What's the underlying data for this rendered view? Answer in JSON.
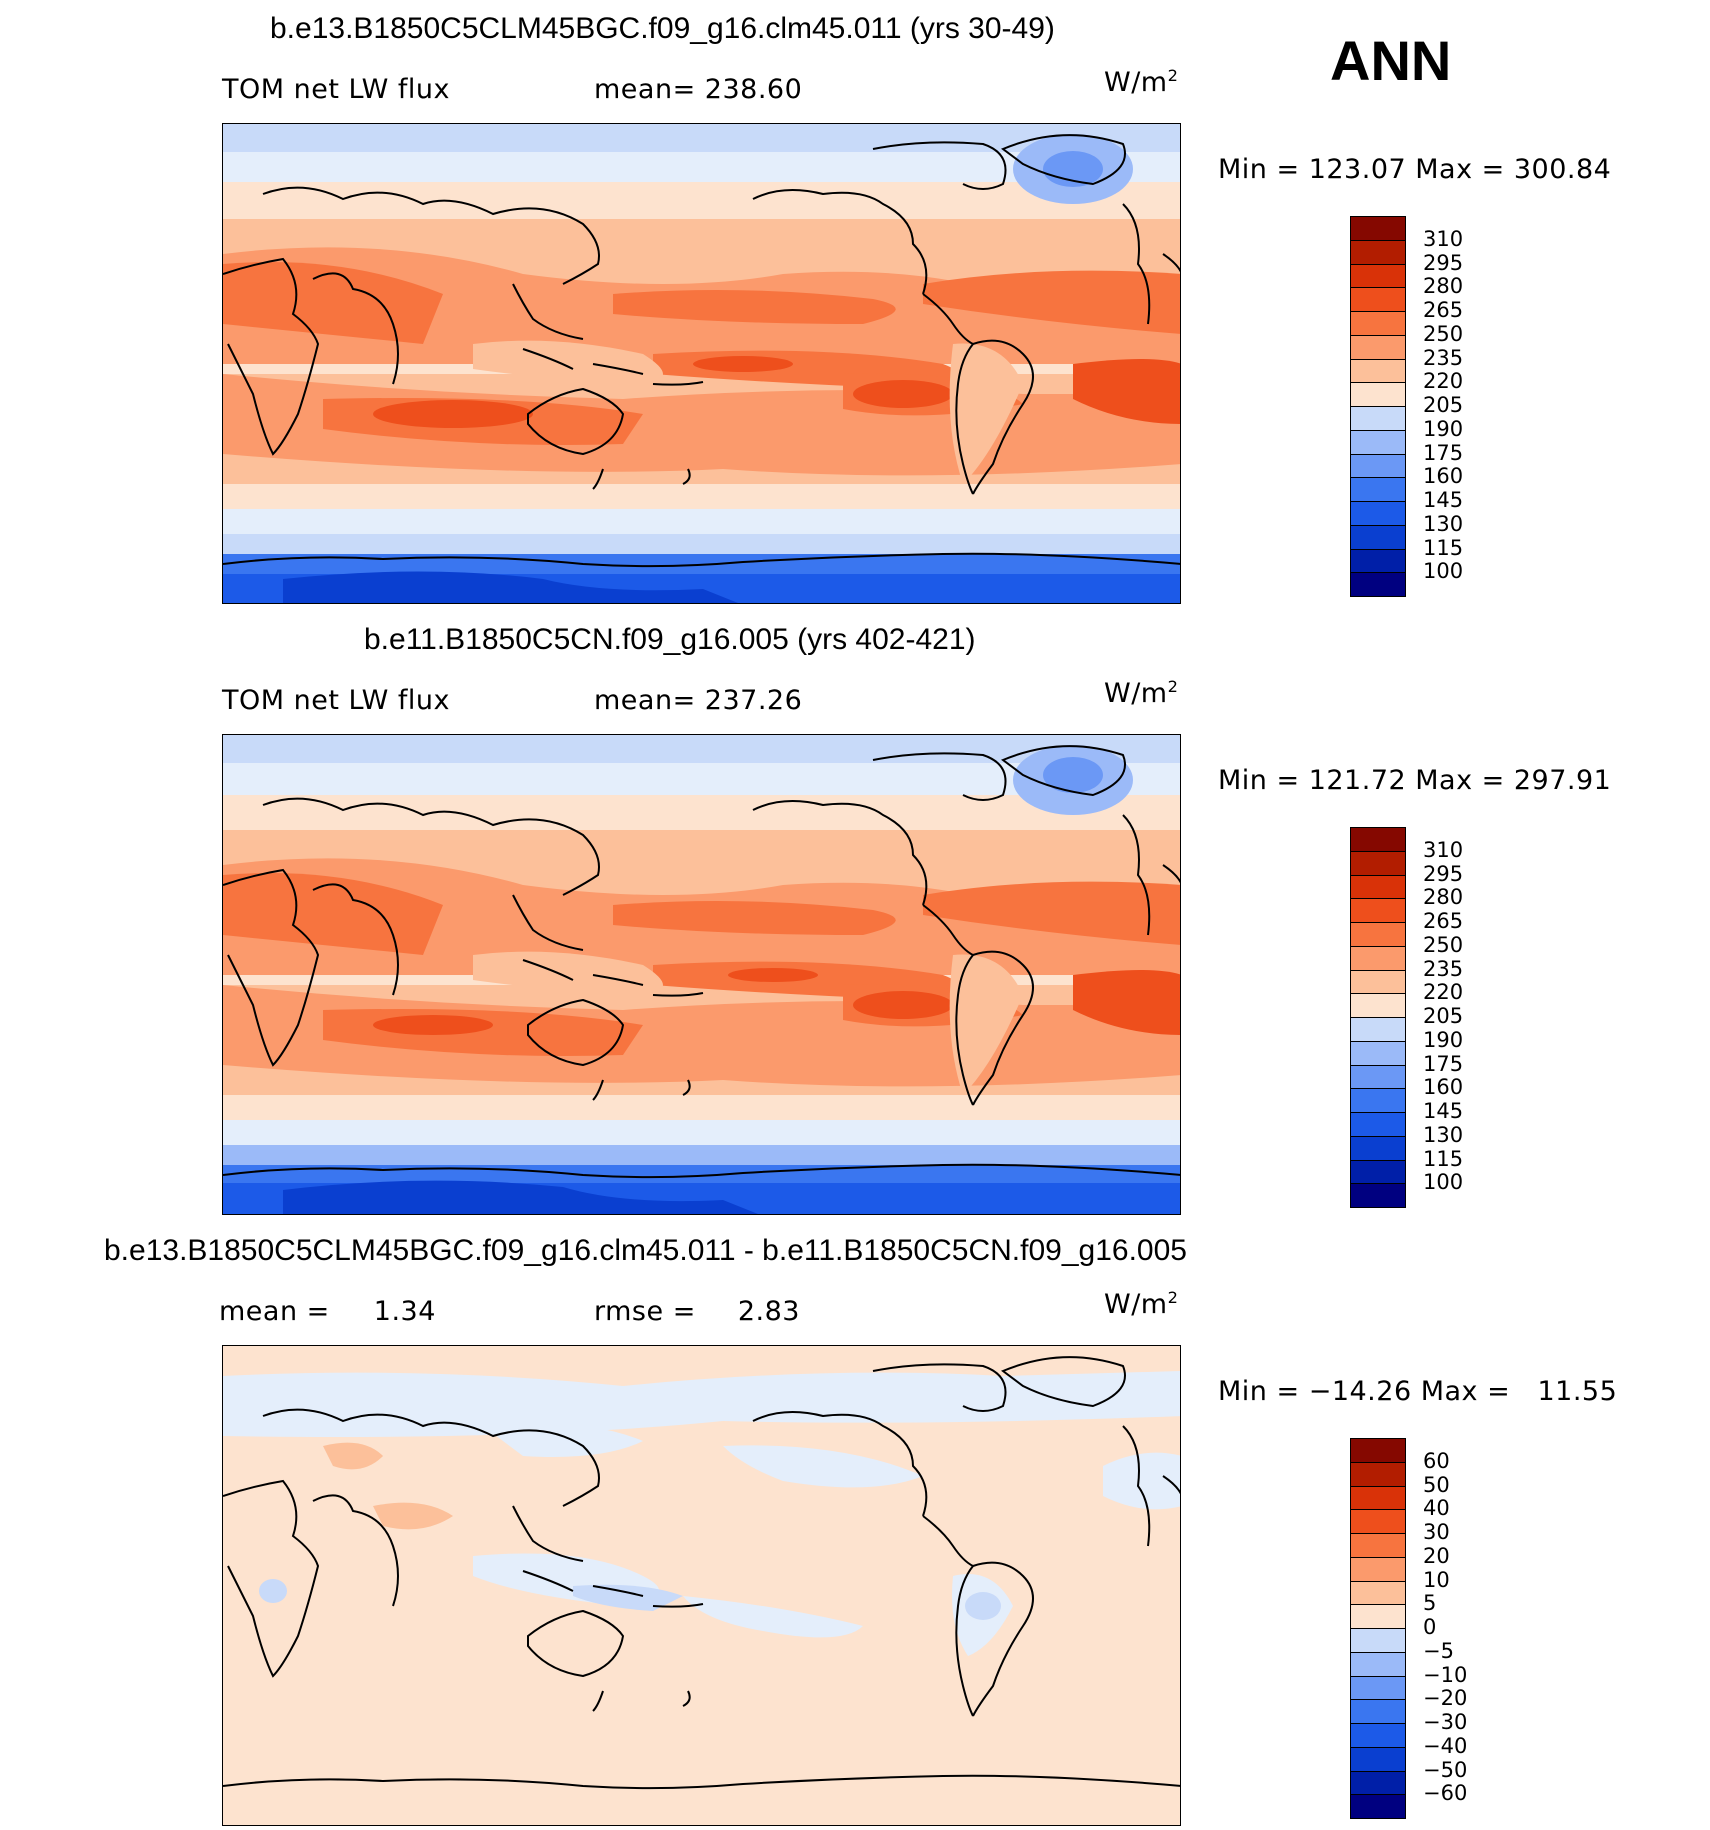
{
  "season": "ANN",
  "units_base": "W/m",
  "units_exp": "2",
  "panels": [
    {
      "title": "b.e13.B1850C5CLM45BGC.f09_g16.clm45.011 (yrs 30-49)",
      "left_label": "TOM net LW flux",
      "stat_label": "mean=",
      "stat_value": "238.60",
      "minmax": "Min = 123.07 Max = 300.84",
      "levels": [
        "310",
        "295",
        "280",
        "265",
        "250",
        "235",
        "220",
        "205",
        "190",
        "175",
        "160",
        "145",
        "130",
        "115",
        "100"
      ]
    },
    {
      "title": "b.e11.B1850C5CN.f09_g16.005 (yrs 402-421)",
      "left_label": "TOM net LW flux",
      "stat_label": "mean=",
      "stat_value": "237.26",
      "minmax": "Min = 121.72 Max = 297.91",
      "levels": [
        "310",
        "295",
        "280",
        "265",
        "250",
        "235",
        "220",
        "205",
        "190",
        "175",
        "160",
        "145",
        "130",
        "115",
        "100"
      ]
    },
    {
      "title": "b.e13.B1850C5CLM45BGC.f09_g16.clm45.011 - b.e11.B1850C5CN.f09_g16.005",
      "left_label": "mean =",
      "left_value": "1.34",
      "stat_label": "rmse =",
      "stat_value": "2.83",
      "minmax": "Min = −14.26 Max =   11.55",
      "levels": [
        "60",
        "50",
        "40",
        "30",
        "20",
        "10",
        "5",
        "0",
        "−5",
        "−10",
        "−20",
        "−30",
        "−40",
        "−50",
        "−60"
      ]
    }
  ],
  "colors": {
    "scale": [
      "#000080",
      "#001fa8",
      "#0a3fd0",
      "#1c5ae8",
      "#3a76f0",
      "#6b98f5",
      "#9bbaf8",
      "#c8daf9",
      "#e4eefb",
      "#fde3cf",
      "#fcc09a",
      "#fb9a6c",
      "#f7743f",
      "#ee4f1c",
      "#d93208",
      "#b21d00",
      "#850800"
    ]
  }
}
